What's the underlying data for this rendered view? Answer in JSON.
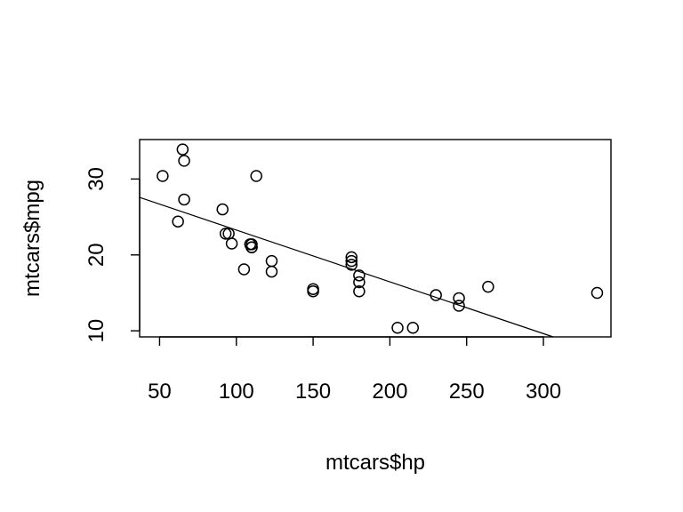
{
  "chart_data": {
    "type": "scatter",
    "title": "",
    "xlabel": "mtcars$hp",
    "ylabel": "mtcars$mpg",
    "xlim": [
      37,
      344
    ],
    "ylim": [
      9.2,
      35.2
    ],
    "x_ticks": [
      50,
      100,
      150,
      200,
      250,
      300
    ],
    "y_ticks": [
      10,
      20,
      30
    ],
    "grid": false,
    "legend": "none",
    "points": [
      {
        "x": 110,
        "y": 21.0
      },
      {
        "x": 110,
        "y": 21.0
      },
      {
        "x": 93,
        "y": 22.8
      },
      {
        "x": 110,
        "y": 21.4
      },
      {
        "x": 175,
        "y": 18.7
      },
      {
        "x": 105,
        "y": 18.1
      },
      {
        "x": 245,
        "y": 14.3
      },
      {
        "x": 62,
        "y": 24.4
      },
      {
        "x": 95,
        "y": 22.8
      },
      {
        "x": 123,
        "y": 19.2
      },
      {
        "x": 123,
        "y": 17.8
      },
      {
        "x": 180,
        "y": 16.4
      },
      {
        "x": 180,
        "y": 17.3
      },
      {
        "x": 180,
        "y": 15.2
      },
      {
        "x": 205,
        "y": 10.4
      },
      {
        "x": 215,
        "y": 10.4
      },
      {
        "x": 230,
        "y": 14.7
      },
      {
        "x": 66,
        "y": 32.4
      },
      {
        "x": 52,
        "y": 30.4
      },
      {
        "x": 65,
        "y": 33.9
      },
      {
        "x": 97,
        "y": 21.5
      },
      {
        "x": 150,
        "y": 15.5
      },
      {
        "x": 150,
        "y": 15.2
      },
      {
        "x": 245,
        "y": 13.3
      },
      {
        "x": 175,
        "y": 19.2
      },
      {
        "x": 66,
        "y": 27.3
      },
      {
        "x": 91,
        "y": 26.0
      },
      {
        "x": 113,
        "y": 30.4
      },
      {
        "x": 264,
        "y": 15.8
      },
      {
        "x": 175,
        "y": 19.7
      },
      {
        "x": 335,
        "y": 15.0
      },
      {
        "x": 109,
        "y": 21.4
      }
    ],
    "fit_line": {
      "intercept": 30.0989,
      "slope": -0.06823
    }
  }
}
